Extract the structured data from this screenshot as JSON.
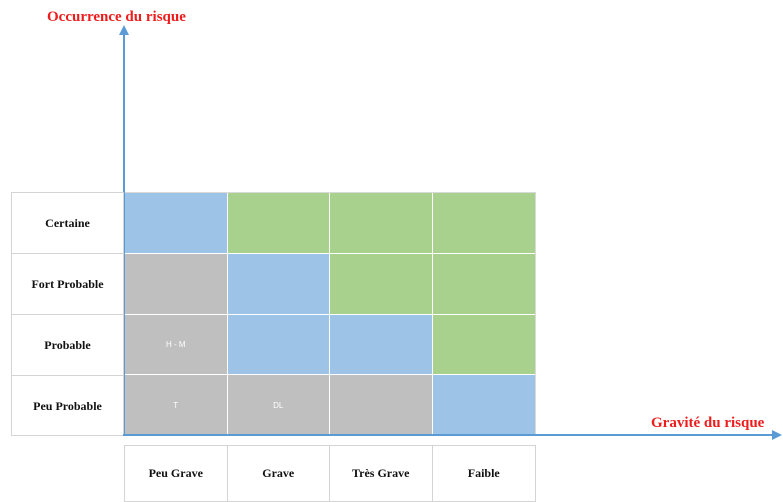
{
  "axes": {
    "y_title": "Occurrence du risque",
    "x_title": "Gravité du risque",
    "color": "#5b9bd5",
    "title_color": "#ee1c1c"
  },
  "rows": [
    "Certaine",
    "Fort Probable",
    "Probable",
    "Peu Probable"
  ],
  "columns": [
    "Peu Grave",
    "Grave",
    "Très Grave",
    "Faible"
  ],
  "colors": {
    "blue": "#9dc3e6",
    "green": "#a9d18e",
    "gray": "#bfbfbf"
  },
  "matrix": [
    [
      {
        "color": "blue",
        "text": ""
      },
      {
        "color": "green",
        "text": ""
      },
      {
        "color": "green",
        "text": ""
      },
      {
        "color": "green",
        "text": ""
      }
    ],
    [
      {
        "color": "gray",
        "text": ""
      },
      {
        "color": "blue",
        "text": ""
      },
      {
        "color": "green",
        "text": ""
      },
      {
        "color": "green",
        "text": ""
      }
    ],
    [
      {
        "color": "gray",
        "text": "H - M"
      },
      {
        "color": "blue",
        "text": ""
      },
      {
        "color": "blue",
        "text": ""
      },
      {
        "color": "green",
        "text": ""
      }
    ],
    [
      {
        "color": "gray",
        "text": "T"
      },
      {
        "color": "gray",
        "text": "DL"
      },
      {
        "color": "gray",
        "text": ""
      },
      {
        "color": "blue",
        "text": ""
      }
    ]
  ]
}
